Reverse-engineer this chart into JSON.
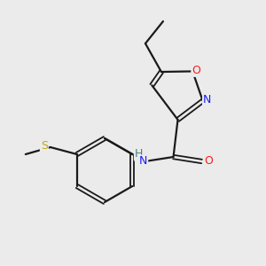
{
  "background_color": "#ebebeb",
  "bond_color": "#1a1a1a",
  "atom_colors": {
    "N": "#1a1aff",
    "O": "#ff1a1a",
    "S": "#c8a800",
    "H": "#4a8080"
  },
  "figsize": [
    3.0,
    3.0
  ],
  "dpi": 100
}
